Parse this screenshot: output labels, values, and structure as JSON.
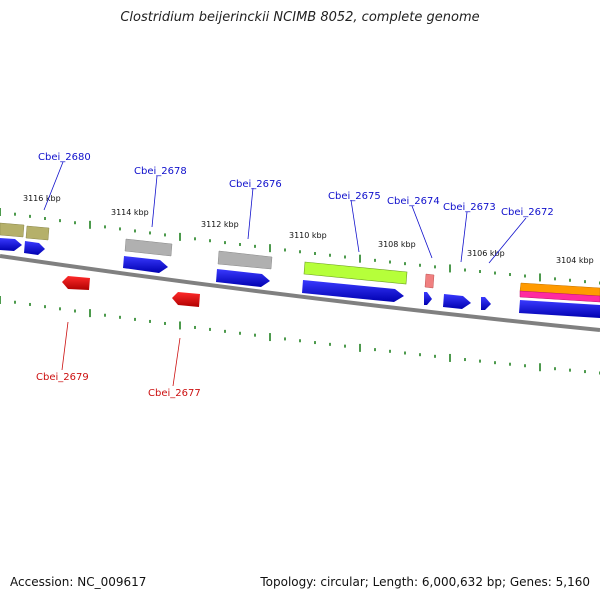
{
  "title": "Clostridium beijerinckii NCIMB 8052, complete genome",
  "footer": {
    "accession": "Accession: NC_009617",
    "summary": "Topology: circular; Length: 6,000,632 bp; Genes: 5,160"
  },
  "scale_labels": [
    "3116 kbp",
    "3114 kbp",
    "3112 kbp",
    "3110 kbp",
    "3108 kbp",
    "3106 kbp",
    "3104 kbp"
  ],
  "genes_forward": [
    "Cbei_2680",
    "Cbei_2678",
    "Cbei_2676",
    "Cbei_2675",
    "Cbei_2674",
    "Cbei_2673",
    "Cbei_2672"
  ],
  "genes_reverse": [
    "Cbei_2679",
    "Cbei_2677"
  ],
  "colors": {
    "backbone": "#808080",
    "cds": "#0000ee",
    "reverse_cds": "#ee0000",
    "olive": "#b5b06a",
    "gray_feature": "#b0b0b0",
    "lime_feature": "#b6ff3a",
    "pink_feature": "#f08080",
    "orange_feature": "#ff9a00",
    "magenta_feature": "#ff2aa0",
    "tick": "#208020",
    "label_blue": "#1010cc",
    "label_red": "#cc1010"
  }
}
